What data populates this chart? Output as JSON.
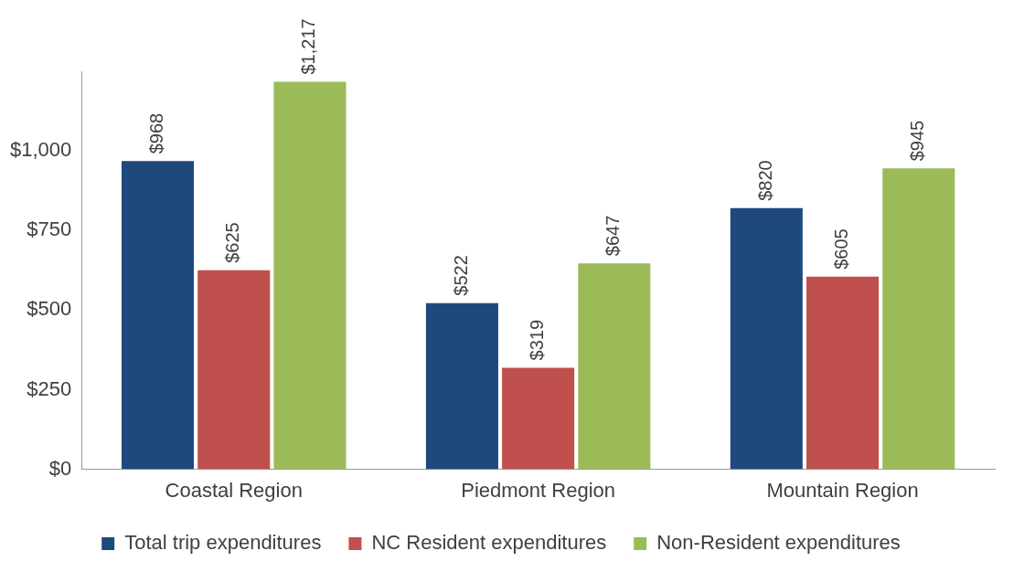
{
  "chart_data": {
    "type": "bar",
    "categories": [
      "Coastal Region",
      "Piedmont Region",
      "Mountain Region"
    ],
    "series": [
      {
        "name": "Total trip expenditures",
        "color": "#1f497d",
        "values": [
          968,
          522,
          820
        ]
      },
      {
        "name": "NC Resident expenditures",
        "color": "#c0504d",
        "values": [
          625,
          319,
          605
        ]
      },
      {
        "name": "Non-Resident expenditures",
        "color": "#9bbb59",
        "values": [
          1217,
          647,
          945
        ]
      }
    ],
    "ylim": [
      0,
      1250
    ],
    "yticks": [
      {
        "value": 0,
        "label": "$0"
      },
      {
        "value": 250,
        "label": "$250"
      },
      {
        "value": 500,
        "label": "$500"
      },
      {
        "value": 750,
        "label": "$750"
      },
      {
        "value": 1000,
        "label": "$1,000"
      }
    ],
    "value_labels": [
      [
        "$968",
        "$522",
        "$820"
      ],
      [
        "$625",
        "$319",
        "$605"
      ],
      [
        "$1,217",
        "$647",
        "$945"
      ]
    ],
    "grid": false,
    "legend": "bottom"
  }
}
